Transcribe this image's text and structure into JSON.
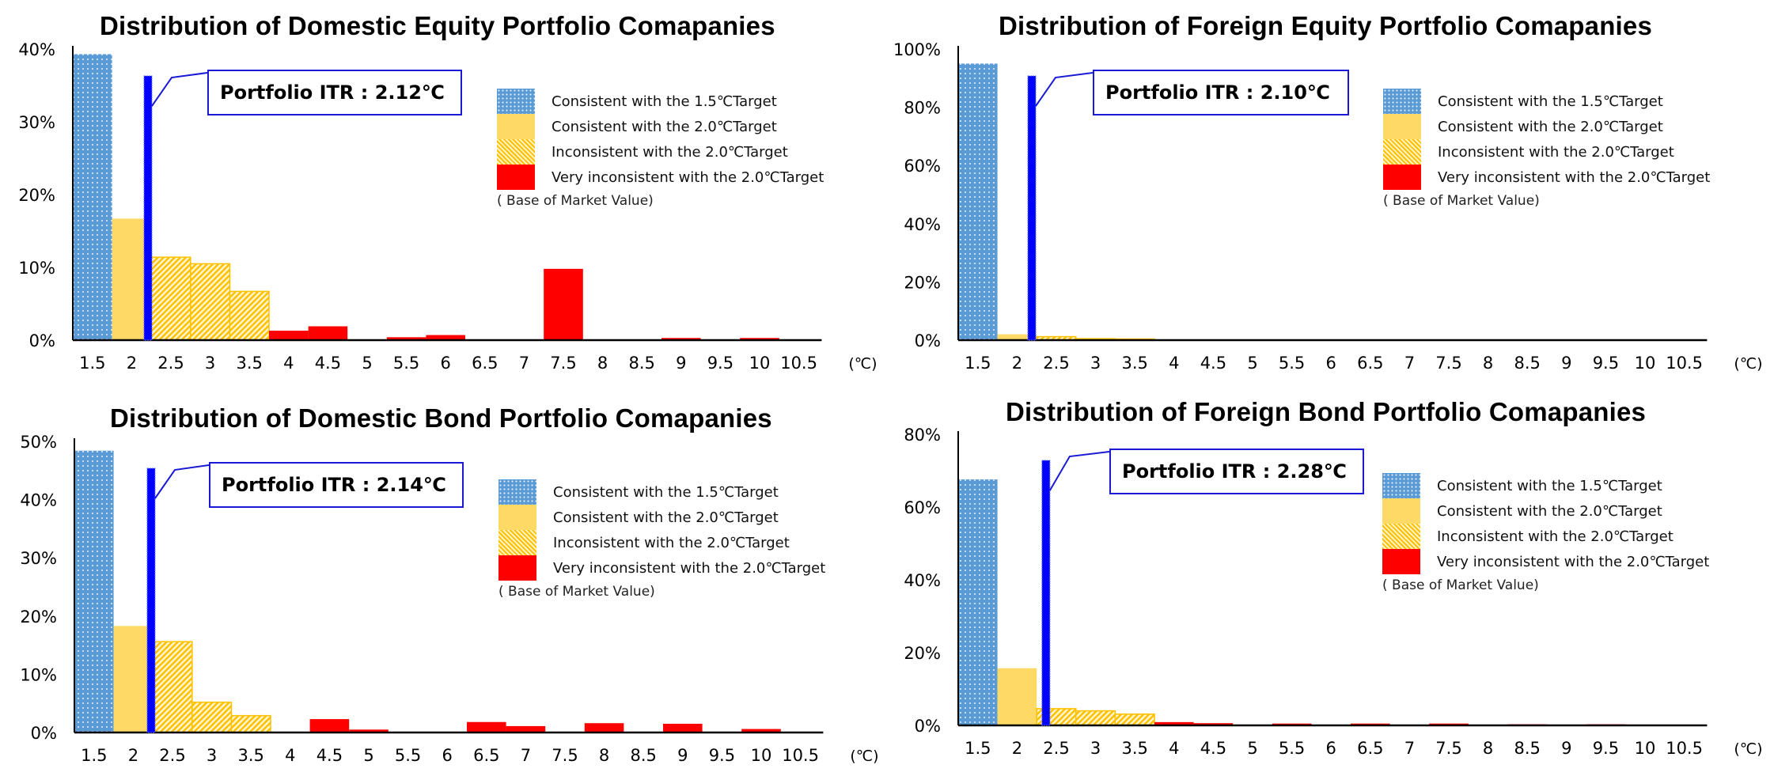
{
  "colors": {
    "consistent_1_5": "#5b9bd5",
    "consistent_2_0": "#ffd966",
    "inconsistent_2_0": "#ffc000",
    "very_inconsistent": "#ff0000",
    "itr_line": "#0000ff",
    "callout_border": "#1a1ad6"
  },
  "legend": {
    "items": [
      {
        "label": "Consistent with the 1.5℃Target",
        "icon": "dotted-blue-swatch"
      },
      {
        "label": "Consistent with the 2.0℃Target",
        "icon": "yellow-swatch"
      },
      {
        "label": "Inconsistent with the 2.0℃Target",
        "icon": "hatched-yellow-swatch"
      },
      {
        "label": "Very inconsistent with the 2.0℃Target",
        "icon": "red-swatch"
      }
    ],
    "note": "( Base of Market Value)"
  },
  "chart_data": [
    {
      "type": "bar",
      "title": "Distribution of Domestic Equity Portfolio Comapanies",
      "xlabel": "(℃)",
      "ylabel": "",
      "ylim": [
        0,
        40
      ],
      "yticks": [
        "0%",
        "10%",
        "20%",
        "30%",
        "40%"
      ],
      "ytick_values": [
        0,
        10,
        20,
        30,
        40
      ],
      "categories": [
        "1.5",
        "2",
        "2.5",
        "3",
        "3.5",
        "4",
        "4.5",
        "5",
        "5.5",
        "6",
        "6.5",
        "7",
        "7.5",
        "8",
        "8.5",
        "9",
        "9.5",
        "10",
        "10.5"
      ],
      "values": [
        39.3,
        16.7,
        11.4,
        10.5,
        6.7,
        1.3,
        1.9,
        0,
        0.4,
        0.7,
        0.1,
        0,
        9.8,
        0.1,
        0,
        0.3,
        0,
        0.3,
        0
      ],
      "classes": [
        "c15",
        "c20",
        "inc",
        "inc",
        "inc",
        "red",
        "red",
        "red",
        "red",
        "red",
        "red",
        "red",
        "red",
        "red",
        "red",
        "red",
        "red",
        "red",
        "red"
      ],
      "portfolio_itr": 2.12,
      "callout_label": "Portfolio ITR : 2.12℃",
      "grid": false
    },
    {
      "type": "bar",
      "title": "Distribution of Foreign Equity Portfolio Comapanies",
      "xlabel": "(℃)",
      "ylabel": "",
      "ylim": [
        0,
        100
      ],
      "yticks": [
        "0%",
        "20%",
        "40%",
        "60%",
        "80%",
        "100%"
      ],
      "ytick_values": [
        0,
        20,
        40,
        60,
        80,
        100
      ],
      "categories": [
        "1.5",
        "2",
        "2.5",
        "3",
        "3.5",
        "4",
        "4.5",
        "5",
        "5.5",
        "6",
        "6.5",
        "7",
        "7.5",
        "8",
        "8.5",
        "9",
        "9.5",
        "10",
        "10.5"
      ],
      "values": [
        95.0,
        2.0,
        1.2,
        0.5,
        0.4,
        0,
        0,
        0,
        0,
        0,
        0.2,
        0,
        0,
        0,
        0,
        0,
        0,
        0,
        0
      ],
      "classes": [
        "c15",
        "c20",
        "inc",
        "inc",
        "inc",
        "red",
        "red",
        "red",
        "red",
        "red",
        "red",
        "red",
        "red",
        "red",
        "red",
        "red",
        "red",
        "red",
        "red"
      ],
      "portfolio_itr": 2.1,
      "callout_label": "Portfolio ITR : 2.10℃",
      "grid": false
    },
    {
      "type": "bar",
      "title": "Distribution of Domestic Bond Portfolio Comapanies",
      "xlabel": "(℃)",
      "ylabel": "",
      "ylim": [
        0,
        50
      ],
      "yticks": [
        "0%",
        "10%",
        "20%",
        "30%",
        "40%",
        "50%"
      ],
      "ytick_values": [
        0,
        10,
        20,
        30,
        40,
        50
      ],
      "categories": [
        "1.5",
        "2",
        "2.5",
        "3",
        "3.5",
        "4",
        "4.5",
        "5",
        "5.5",
        "6",
        "6.5",
        "7",
        "7.5",
        "8",
        "8.5",
        "9",
        "9.5",
        "10",
        "10.5"
      ],
      "values": [
        48.4,
        18.3,
        15.6,
        5.2,
        2.9,
        0,
        2.3,
        0.5,
        0,
        0,
        1.8,
        1.1,
        0,
        1.6,
        0,
        1.5,
        0,
        0.6,
        0
      ],
      "classes": [
        "c15",
        "c20",
        "inc",
        "inc",
        "inc",
        "red",
        "red",
        "red",
        "red",
        "red",
        "red",
        "red",
        "red",
        "red",
        "red",
        "red",
        "red",
        "red",
        "red"
      ],
      "portfolio_itr": 2.14,
      "callout_label": "Portfolio ITR : 2.14℃",
      "grid": false
    },
    {
      "type": "bar",
      "title": "Distribution of Foreign Bond Portfolio Comapanies",
      "xlabel": "(℃)",
      "ylabel": "",
      "ylim": [
        0,
        80
      ],
      "yticks": [
        "0%",
        "20%",
        "40%",
        "60%",
        "80%"
      ],
      "ytick_values": [
        0,
        20,
        40,
        60,
        80
      ],
      "categories": [
        "1.5",
        "2",
        "2.5",
        "3",
        "3.5",
        "4",
        "4.5",
        "5",
        "5.5",
        "6",
        "6.5",
        "7",
        "7.5",
        "8",
        "8.5",
        "9",
        "9.5",
        "10",
        "10.5"
      ],
      "values": [
        67.6,
        15.7,
        4.6,
        4.0,
        3.1,
        0.9,
        0.6,
        0,
        0.5,
        0,
        0.5,
        0,
        0.5,
        0,
        0.3,
        0,
        0.3,
        0,
        0
      ],
      "classes": [
        "c15",
        "c20",
        "inc",
        "inc",
        "inc",
        "red",
        "red",
        "red",
        "red",
        "red",
        "red",
        "red",
        "red",
        "red",
        "red",
        "red",
        "red",
        "red",
        "red"
      ],
      "portfolio_itr": 2.28,
      "callout_label": "Portfolio ITR : 2.28℃",
      "grid": false
    }
  ]
}
